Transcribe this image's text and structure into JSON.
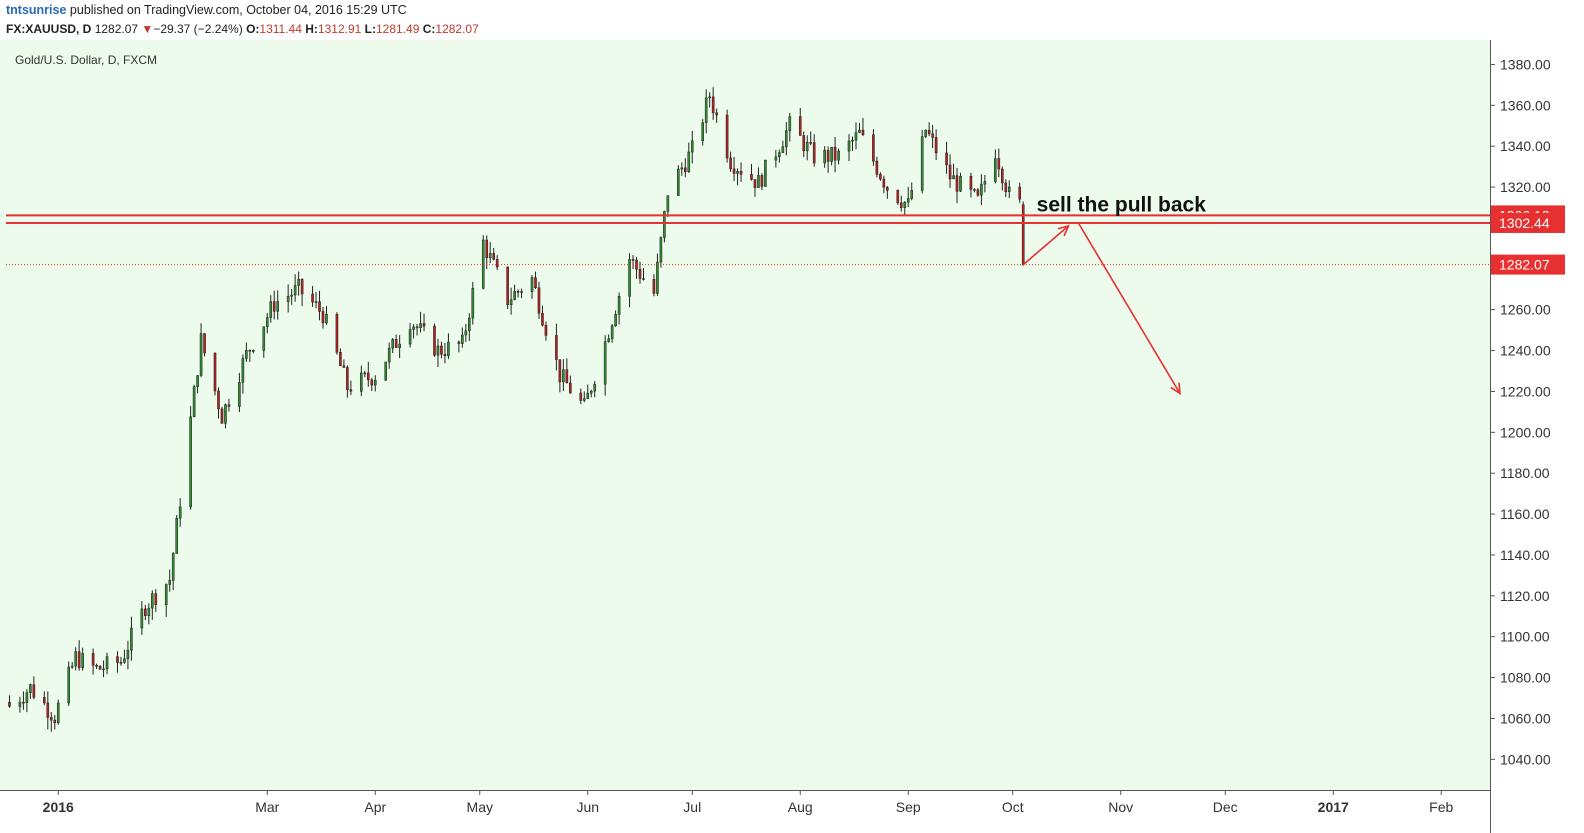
{
  "header": {
    "publisher": "tntsunrise",
    "published_text": "published on TradingView.com, October 04, 2016 15:29 UTC",
    "symbol": "FX:XAUUSD, D",
    "last": "1282.07",
    "change": "−29.37 (−2.24%)",
    "o_label": "O:",
    "o_value": "1311.44",
    "h_label": "H:",
    "h_value": "1312.91",
    "l_label": "L:",
    "l_value": "1281.49",
    "c_label": "C:",
    "c_value": "1282.07"
  },
  "colors": {
    "background": "#ecfbec",
    "up": "#2e8b2e",
    "down": "#b52020",
    "levels": "#e83030",
    "arrows": "#e83030"
  },
  "chart_data": {
    "type": "candlestick",
    "title": "Gold/U.S. Dollar, D, FXCM",
    "ylim": [
      1025,
      1390
    ],
    "y_ticks": [
      1040,
      1060,
      1080,
      1100,
      1120,
      1140,
      1160,
      1180,
      1200,
      1220,
      1240,
      1260,
      1280,
      1300,
      1320,
      1340,
      1360,
      1380
    ],
    "y_tick_labels": [
      "1040.00",
      "1060.00",
      "1080.00",
      "1100.00",
      "1120.00",
      "1140.00",
      "1160.00",
      "1180.00",
      "1200.00",
      "1220.00",
      "1240.00",
      "1260.00",
      "1280.00",
      "1300.00",
      "1320.00",
      "1340.00",
      "1360.00",
      "1380.00"
    ],
    "xlim": [
      "2015-12-17",
      "2017-02-15"
    ],
    "x_ticks": [
      {
        "date": "2016-01-01",
        "label": "2016",
        "bold": true
      },
      {
        "date": "2016-03-01",
        "label": "Mar",
        "bold": false
      },
      {
        "date": "2016-04-01",
        "label": "Apr",
        "bold": false
      },
      {
        "date": "2016-05-01",
        "label": "May",
        "bold": false
      },
      {
        "date": "2016-06-01",
        "label": "Jun",
        "bold": false
      },
      {
        "date": "2016-07-01",
        "label": "Jul",
        "bold": false
      },
      {
        "date": "2016-08-01",
        "label": "Aug",
        "bold": false
      },
      {
        "date": "2016-09-01",
        "label": "Sep",
        "bold": false
      },
      {
        "date": "2016-10-01",
        "label": "Oct",
        "bold": false
      },
      {
        "date": "2016-11-01",
        "label": "Nov",
        "bold": false
      },
      {
        "date": "2016-12-01",
        "label": "Dec",
        "bold": false
      },
      {
        "date": "2017-01-01",
        "label": "2017",
        "bold": true
      },
      {
        "date": "2017-02-01",
        "label": "Feb",
        "bold": false
      }
    ],
    "anchors": [
      [
        "2015-12-18",
        1066
      ],
      [
        "2015-12-24",
        1075
      ],
      [
        "2015-12-31",
        1061
      ],
      [
        "2016-01-06",
        1090
      ],
      [
        "2016-01-12",
        1084
      ],
      [
        "2016-01-19",
        1088
      ],
      [
        "2016-01-26",
        1115
      ],
      [
        "2016-02-02",
        1128
      ],
      [
        "2016-02-11",
        1245
      ],
      [
        "2016-02-17",
        1208
      ],
      [
        "2016-02-24",
        1238
      ],
      [
        "2016-03-03",
        1263
      ],
      [
        "2016-03-10",
        1270
      ],
      [
        "2016-03-17",
        1258
      ],
      [
        "2016-03-24",
        1222
      ],
      [
        "2016-04-01",
        1228
      ],
      [
        "2016-04-11",
        1255
      ],
      [
        "2016-04-19",
        1240
      ],
      [
        "2016-04-26",
        1243
      ],
      [
        "2016-05-02",
        1293
      ],
      [
        "2016-05-09",
        1265
      ],
      [
        "2016-05-16",
        1275
      ],
      [
        "2016-05-24",
        1228
      ],
      [
        "2016-05-31",
        1212
      ],
      [
        "2016-06-06",
        1244
      ],
      [
        "2016-06-13",
        1285
      ],
      [
        "2016-06-20",
        1268
      ],
      [
        "2016-06-24",
        1318
      ],
      [
        "2016-07-01",
        1338
      ],
      [
        "2016-07-06",
        1365
      ],
      [
        "2016-07-12",
        1333
      ],
      [
        "2016-07-20",
        1322
      ],
      [
        "2016-07-29",
        1350
      ],
      [
        "2016-08-05",
        1335
      ],
      [
        "2016-08-12",
        1335
      ],
      [
        "2016-08-18",
        1346
      ],
      [
        "2016-08-26",
        1320
      ],
      [
        "2016-09-01",
        1311
      ],
      [
        "2016-09-06",
        1348
      ],
      [
        "2016-09-13",
        1325
      ],
      [
        "2016-09-21",
        1313
      ],
      [
        "2016-09-26",
        1338
      ],
      [
        "2016-09-30",
        1316
      ],
      [
        "2016-10-03",
        1311.44
      ],
      [
        "2016-10-04",
        1282.07
      ]
    ],
    "last_candle": {
      "date": "2016-10-04",
      "open": 1311.44,
      "high": 1312.91,
      "low": 1281.49,
      "close": 1282.07
    },
    "horizontal_levels": [
      {
        "value": 1306.13,
        "label": "1306.13",
        "style": "solid"
      },
      {
        "value": 1302.44,
        "label": "1302.44",
        "style": "solid"
      },
      {
        "value": 1282.07,
        "label": "1282.07",
        "style": "dotted"
      }
    ],
    "annotation": {
      "text": "sell the pull back",
      "date": "2016-10-05",
      "value": 1308
    },
    "arrows": [
      {
        "from": [
          "2016-10-04",
          1282
        ],
        "to": [
          "2016-10-17",
          1301
        ]
      },
      {
        "from": [
          "2016-10-20",
          1302
        ],
        "to": [
          "2016-11-18",
          1219
        ]
      }
    ],
    "grid": false,
    "legend": "none"
  }
}
